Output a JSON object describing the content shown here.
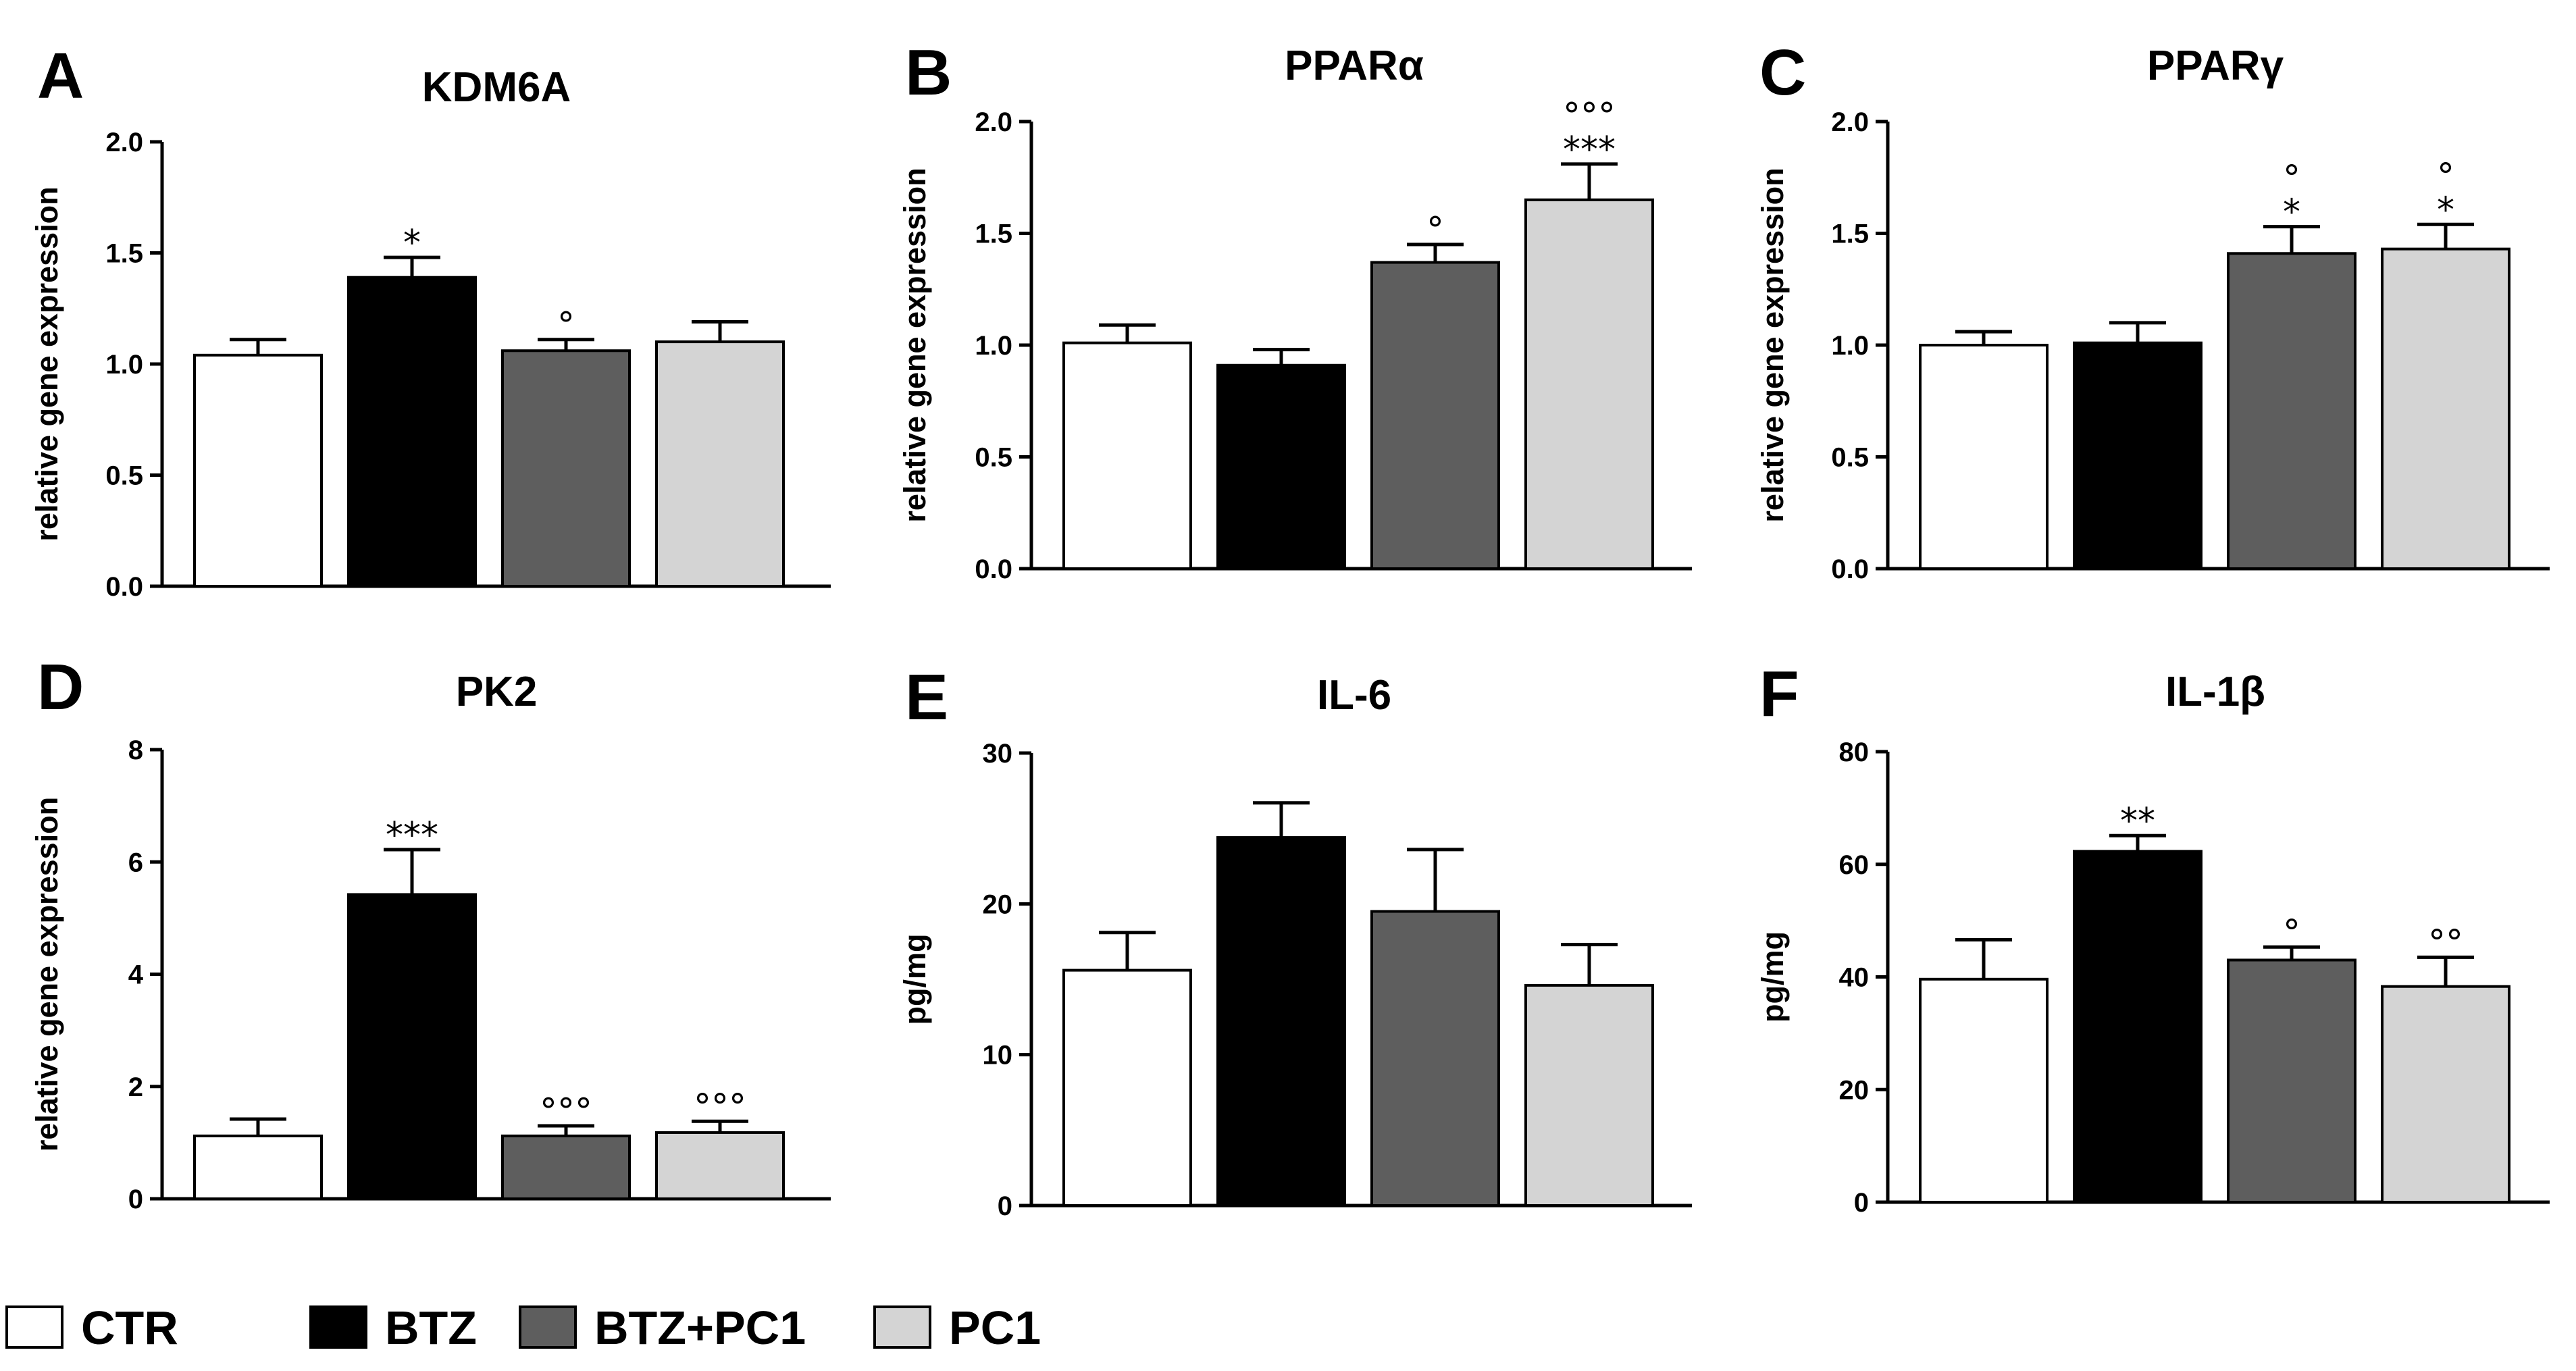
{
  "legend": [
    {
      "label": "CTR",
      "color": "#ffffff"
    },
    {
      "label": "BTZ",
      "color": "#000000"
    },
    {
      "label": "BTZ+PC1",
      "color": "#5e5e5e"
    },
    {
      "label": "PC1",
      "color": "#d4d4d4"
    }
  ],
  "chart_data": [
    {
      "type": "bar",
      "letter": "A",
      "title": "KDM6A",
      "ylabel": "relative gene expression",
      "ylim": [
        0,
        2.0
      ],
      "ticks": [
        "0.0",
        "0.5",
        "1.0",
        "1.5",
        "2.0"
      ],
      "categories": [
        "CTR",
        "BTZ",
        "BTZ+PC1",
        "PC1"
      ],
      "values": [
        1.04,
        1.39,
        1.06,
        1.1
      ],
      "errors": [
        0.07,
        0.09,
        0.05,
        0.09
      ],
      "significance": [
        "",
        "*",
        "°",
        ""
      ]
    },
    {
      "type": "bar",
      "letter": "B",
      "title": "PPARα",
      "ylabel": "relative gene expression",
      "ylim": [
        0,
        2.0
      ],
      "ticks": [
        "0.0",
        "0.5",
        "1.0",
        "1.5",
        "2.0"
      ],
      "categories": [
        "CTR",
        "BTZ",
        "BTZ+PC1",
        "PC1"
      ],
      "values": [
        1.01,
        0.91,
        1.37,
        1.65
      ],
      "errors": [
        0.08,
        0.07,
        0.08,
        0.16
      ],
      "significance": [
        "",
        "",
        "°",
        "°°°\n***"
      ]
    },
    {
      "type": "bar",
      "letter": "C",
      "title": "PPARγ",
      "ylabel": "relative gene expression",
      "ylim": [
        0,
        2.0
      ],
      "ticks": [
        "0.0",
        "0.5",
        "1.0",
        "1.5",
        "2.0"
      ],
      "categories": [
        "CTR",
        "BTZ",
        "BTZ+PC1",
        "PC1"
      ],
      "values": [
        1.0,
        1.01,
        1.41,
        1.43
      ],
      "errors": [
        0.06,
        0.09,
        0.12,
        0.11
      ],
      "significance": [
        "",
        "",
        "°\n*",
        "°\n*"
      ]
    },
    {
      "type": "bar",
      "letter": "D",
      "title": "PK2",
      "ylabel": "relative gene expression",
      "ylim": [
        0,
        8
      ],
      "ticks": [
        "0",
        "2",
        "4",
        "6",
        "8"
      ],
      "categories": [
        "CTR",
        "BTZ",
        "BTZ+PC1",
        "PC1"
      ],
      "values": [
        1.12,
        5.42,
        1.12,
        1.18
      ],
      "errors": [
        0.3,
        0.8,
        0.18,
        0.2
      ],
      "significance": [
        "",
        "***",
        "°°°",
        "°°°"
      ]
    },
    {
      "type": "bar",
      "letter": "E",
      "title": "IL-6",
      "ylabel": "pg/mg",
      "ylim": [
        0,
        30
      ],
      "ticks": [
        "0",
        "10",
        "20",
        "30"
      ],
      "categories": [
        "CTR",
        "BTZ",
        "BTZ+PC1",
        "PC1"
      ],
      "values": [
        15.6,
        24.4,
        19.5,
        14.6
      ],
      "errors": [
        2.5,
        2.3,
        4.1,
        2.7
      ],
      "significance": [
        "",
        "",
        "",
        ""
      ]
    },
    {
      "type": "bar",
      "letter": "F",
      "title": "IL-1β",
      "ylabel": "pg/mg",
      "ylim": [
        0,
        80
      ],
      "ticks": [
        "0",
        "20",
        "40",
        "60",
        "80"
      ],
      "categories": [
        "CTR",
        "BTZ",
        "BTZ+PC1",
        "PC1"
      ],
      "values": [
        39.6,
        62.3,
        43.0,
        38.3
      ],
      "errors": [
        7.0,
        2.8,
        2.3,
        5.2
      ],
      "significance": [
        "",
        "**",
        "°",
        "°°"
      ]
    }
  ]
}
